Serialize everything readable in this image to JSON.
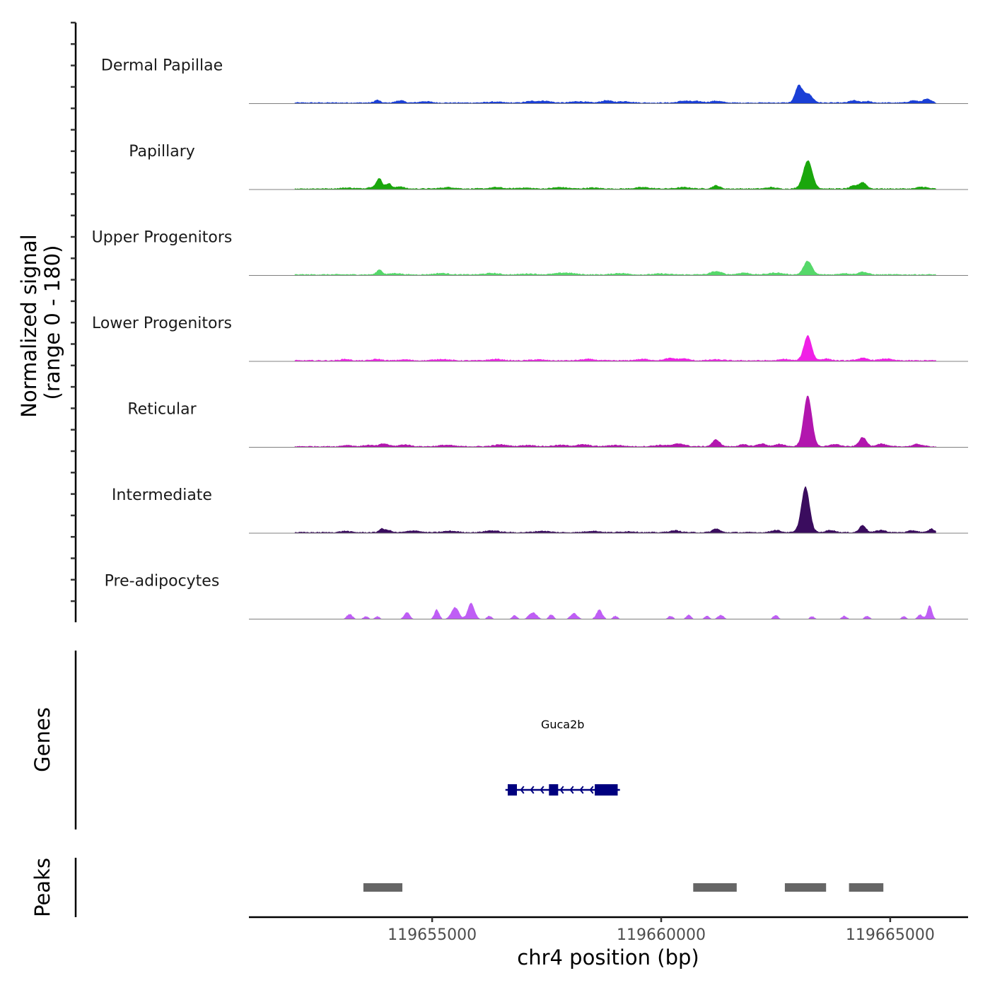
{
  "chart_data": {
    "type": "area",
    "title": "",
    "xlabel": "chr4 position (bp)",
    "ylabel": "Normalized signal",
    "ylabel_range": "(range 0 - 180)",
    "xlim": [
      119651000,
      119666700
    ],
    "ylim": [
      0,
      180
    ],
    "x_ticks": [
      119655000,
      119660000,
      119665000
    ],
    "x_tick_labels": [
      "119655000",
      "119660000",
      "119665000"
    ],
    "series": [
      {
        "name": "Dermal Papillae",
        "color": "#1a3fd6",
        "peaks": [
          [
            119653800,
            6,
            60
          ],
          [
            119654300,
            5,
            90
          ],
          [
            119654850,
            3,
            120
          ],
          [
            119656350,
            2,
            150
          ],
          [
            119657150,
            3,
            120
          ],
          [
            119657450,
            4,
            140
          ],
          [
            119658200,
            3,
            150
          ],
          [
            119658800,
            5,
            110
          ],
          [
            119659200,
            3,
            150
          ],
          [
            119660500,
            4,
            120
          ],
          [
            119660800,
            3,
            120
          ],
          [
            119661200,
            4,
            120
          ],
          [
            119663000,
            36,
            75
          ],
          [
            119663200,
            20,
            100
          ],
          [
            119664200,
            5,
            90
          ],
          [
            119664500,
            3,
            90
          ],
          [
            119665500,
            5,
            90
          ],
          [
            119665800,
            8,
            90
          ]
        ]
      },
      {
        "name": "Papillary",
        "color": "#1aa70c",
        "peaks": [
          [
            119653150,
            2,
            150
          ],
          [
            119653700,
            4,
            100
          ],
          [
            119653850,
            22,
            60
          ],
          [
            119654050,
            12,
            60
          ],
          [
            119654300,
            5,
            80
          ],
          [
            119655350,
            3,
            150
          ],
          [
            119656400,
            3,
            130
          ],
          [
            119657000,
            2,
            150
          ],
          [
            119657800,
            3,
            150
          ],
          [
            119658500,
            2,
            150
          ],
          [
            119659600,
            3,
            150
          ],
          [
            119660500,
            3,
            150
          ],
          [
            119661200,
            7,
            80
          ],
          [
            119662400,
            3,
            100
          ],
          [
            119663200,
            62,
            100
          ],
          [
            119664200,
            6,
            80
          ],
          [
            119664400,
            14,
            80
          ],
          [
            119665700,
            4,
            100
          ]
        ]
      },
      {
        "name": "Upper Progenitors",
        "color": "#56d86a",
        "peaks": [
          [
            119653850,
            11,
            60
          ],
          [
            119654200,
            3,
            120
          ],
          [
            119655200,
            3,
            150
          ],
          [
            119656300,
            3,
            150
          ],
          [
            119657100,
            2,
            150
          ],
          [
            119657900,
            4,
            200
          ],
          [
            119659100,
            3,
            150
          ],
          [
            119660000,
            2,
            150
          ],
          [
            119661200,
            7,
            120
          ],
          [
            119661800,
            4,
            120
          ],
          [
            119662500,
            4,
            150
          ],
          [
            119663200,
            30,
            90
          ],
          [
            119664000,
            3,
            100
          ],
          [
            119664400,
            6,
            100
          ]
        ]
      },
      {
        "name": "Lower Progenitors",
        "color": "#f020e6",
        "peaks": [
          [
            119653100,
            3,
            100
          ],
          [
            119653800,
            3,
            100
          ],
          [
            119654400,
            2,
            120
          ],
          [
            119655200,
            3,
            150
          ],
          [
            119656400,
            3,
            150
          ],
          [
            119657300,
            2,
            150
          ],
          [
            119658400,
            3,
            150
          ],
          [
            119659600,
            3,
            150
          ],
          [
            119660200,
            5,
            120
          ],
          [
            119660500,
            4,
            100
          ],
          [
            119661200,
            2,
            150
          ],
          [
            119662700,
            3,
            100
          ],
          [
            119663200,
            55,
            85
          ],
          [
            119663600,
            4,
            100
          ],
          [
            119664400,
            5,
            120
          ],
          [
            119664900,
            4,
            120
          ]
        ]
      },
      {
        "name": "Reticular",
        "color": "#b216ae",
        "peaks": [
          [
            119653150,
            3,
            100
          ],
          [
            119653600,
            3,
            100
          ],
          [
            119653950,
            6,
            100
          ],
          [
            119654400,
            4,
            120
          ],
          [
            119655300,
            3,
            150
          ],
          [
            119656500,
            4,
            150
          ],
          [
            119657100,
            3,
            150
          ],
          [
            119657800,
            3,
            150
          ],
          [
            119658300,
            4,
            150
          ],
          [
            119659000,
            3,
            150
          ],
          [
            119660000,
            3,
            150
          ],
          [
            119660400,
            6,
            120
          ],
          [
            119661200,
            15,
            80
          ],
          [
            119661800,
            4,
            100
          ],
          [
            119662200,
            6,
            100
          ],
          [
            119662600,
            5,
            100
          ],
          [
            119663200,
            112,
            90
          ],
          [
            119663800,
            5,
            100
          ],
          [
            119664400,
            20,
            80
          ],
          [
            119664800,
            6,
            100
          ],
          [
            119665600,
            5,
            100
          ]
        ]
      },
      {
        "name": "Intermediate",
        "color": "#3a0c5e",
        "peaks": [
          [
            119653100,
            3,
            100
          ],
          [
            119653900,
            8,
            60
          ],
          [
            119654050,
            5,
            60
          ],
          [
            119654600,
            4,
            120
          ],
          [
            119655400,
            3,
            150
          ],
          [
            119656300,
            4,
            150
          ],
          [
            119657400,
            3,
            150
          ],
          [
            119658500,
            3,
            150
          ],
          [
            119659300,
            2,
            150
          ],
          [
            119660300,
            4,
            120
          ],
          [
            119661200,
            8,
            80
          ],
          [
            119662500,
            5,
            100
          ],
          [
            119663150,
            100,
            90
          ],
          [
            119663700,
            5,
            100
          ],
          [
            119664400,
            16,
            70
          ],
          [
            119664800,
            5,
            100
          ],
          [
            119665500,
            4,
            100
          ],
          [
            119665900,
            8,
            60
          ]
        ]
      },
      {
        "name": "Pre-adipocytes",
        "color": "#bf5ef5",
        "peaks": [
          [
            119653200,
            10,
            60
          ],
          [
            119653550,
            5,
            50
          ],
          [
            119653800,
            5,
            50
          ],
          [
            119654450,
            14,
            60
          ],
          [
            119655100,
            20,
            50
          ],
          [
            119655500,
            25,
            80
          ],
          [
            119655850,
            35,
            70
          ],
          [
            119656250,
            6,
            50
          ],
          [
            119656800,
            8,
            50
          ],
          [
            119657200,
            14,
            80
          ],
          [
            119657600,
            9,
            50
          ],
          [
            119658100,
            12,
            70
          ],
          [
            119658650,
            20,
            60
          ],
          [
            119659000,
            6,
            50
          ],
          [
            119660200,
            6,
            50
          ],
          [
            119660600,
            9,
            50
          ],
          [
            119661000,
            6,
            50
          ],
          [
            119661300,
            8,
            60
          ],
          [
            119662500,
            8,
            50
          ],
          [
            119663300,
            5,
            50
          ],
          [
            119664000,
            6,
            50
          ],
          [
            119664500,
            6,
            50
          ],
          [
            119665300,
            5,
            50
          ],
          [
            119665650,
            9,
            50
          ],
          [
            119665860,
            30,
            50
          ]
        ]
      }
    ],
    "genes": [
      {
        "name": "Guca2b",
        "start": 119656600,
        "end": 119659100,
        "strand": "-",
        "exons": [
          [
            119656650,
            119656850
          ],
          [
            119657550,
            119657750
          ],
          [
            119658550,
            119658850
          ],
          [
            119658850,
            119659050
          ]
        ]
      }
    ],
    "peaks": [
      [
        119653500,
        119654350
      ],
      [
        119660700,
        119661650
      ],
      [
        119662700,
        119663600
      ],
      [
        119664100,
        119664850
      ]
    ],
    "panel_titles": [
      "Genes",
      "Peaks"
    ]
  }
}
